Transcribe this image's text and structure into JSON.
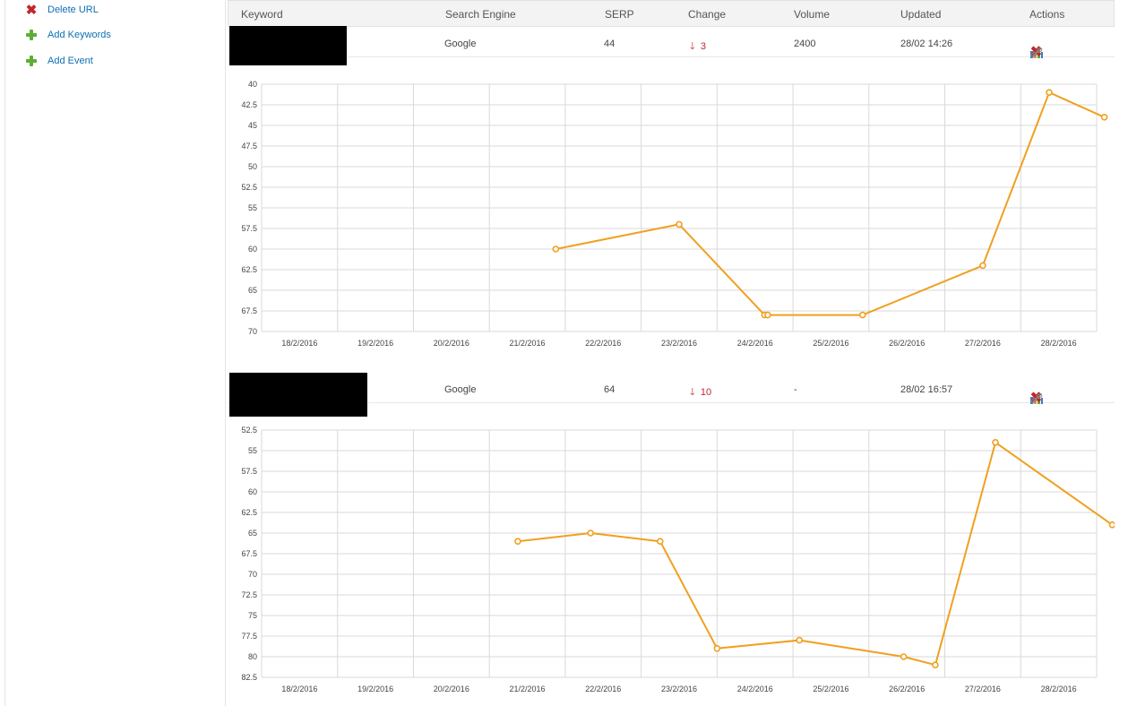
{
  "sidebar": {
    "items": [
      {
        "label": "Delete URL",
        "icon": "delete-icon"
      },
      {
        "label": "Add Keywords",
        "icon": "plus-icon"
      },
      {
        "label": "Add Event",
        "icon": "plus-icon"
      }
    ]
  },
  "table": {
    "headers": {
      "keyword": "Keyword",
      "engine": "Search Engine",
      "serp": "SERP",
      "change": "Change",
      "volume": "Volume",
      "updated": "Updated",
      "actions": "Actions"
    },
    "rows": [
      {
        "engine": "Google",
        "serp": "44",
        "change": "3",
        "volume": "2400",
        "updated": "28/02 14:26"
      },
      {
        "engine": "Google",
        "serp": "64",
        "change": "10",
        "volume": "-",
        "updated": "28/02 16:57"
      }
    ]
  },
  "colors": {
    "line": "#f0a020",
    "accent": "#0e6fb1",
    "down": "#c0272d",
    "grid": "#d9d9d9"
  },
  "chart_data": [
    {
      "type": "line",
      "x_categories": [
        "18/2/2016",
        "19/2/2016",
        "20/2/2016",
        "21/2/2016",
        "22/2/2016",
        "23/2/2016",
        "24/2/2016",
        "25/2/2016",
        "26/2/2016",
        "27/2/2016",
        "28/2/2016"
      ],
      "ylim": [
        40,
        70
      ],
      "y_ticks": [
        "40",
        "42.5",
        "45",
        "47.5",
        "50",
        "52.5",
        "55",
        "57.5",
        "60",
        "62.5",
        "65",
        "67.5",
        "70"
      ],
      "y_inverted": true,
      "grid": true,
      "series": [
        {
          "points": [
            {
              "x": "21/2/2016 09:00",
              "y": 60
            },
            {
              "x": "23/2/2016 00:00",
              "y": 57
            },
            {
              "x": "24/2/2016 03:00",
              "y": 68
            },
            {
              "x": "24/2/2016 04:00",
              "y": 68
            },
            {
              "x": "25/2/2016 10:00",
              "y": 68
            },
            {
              "x": "27/2/2016 00:00",
              "y": 62
            },
            {
              "x": "27/2/2016 21:00",
              "y": 41
            },
            {
              "x": "28/2/2016 14:26",
              "y": 44
            }
          ]
        }
      ]
    },
    {
      "type": "line",
      "x_categories": [
        "18/2/2016",
        "19/2/2016",
        "20/2/2016",
        "21/2/2016",
        "22/2/2016",
        "23/2/2016",
        "24/2/2016",
        "25/2/2016",
        "26/2/2016",
        "27/2/2016",
        "28/2/2016"
      ],
      "ylim": [
        52.5,
        82.5
      ],
      "y_ticks": [
        "52.5",
        "55",
        "57.5",
        "60",
        "62.5",
        "65",
        "67.5",
        "70",
        "72.5",
        "75",
        "77.5",
        "80",
        "82.5"
      ],
      "y_inverted": true,
      "grid": true,
      "series": [
        {
          "points": [
            {
              "x": "20/2/2016 21:00",
              "y": 66
            },
            {
              "x": "21/2/2016 20:00",
              "y": 65
            },
            {
              "x": "22/2/2016 18:00",
              "y": 66
            },
            {
              "x": "23/2/2016 12:00",
              "y": 79
            },
            {
              "x": "24/2/2016 14:00",
              "y": 78
            },
            {
              "x": "25/2/2016 23:00",
              "y": 80
            },
            {
              "x": "26/2/2016 09:00",
              "y": 81
            },
            {
              "x": "27/2/2016 04:00",
              "y": 54
            },
            {
              "x": "28/2/2016 16:57",
              "y": 64
            }
          ]
        }
      ]
    }
  ]
}
